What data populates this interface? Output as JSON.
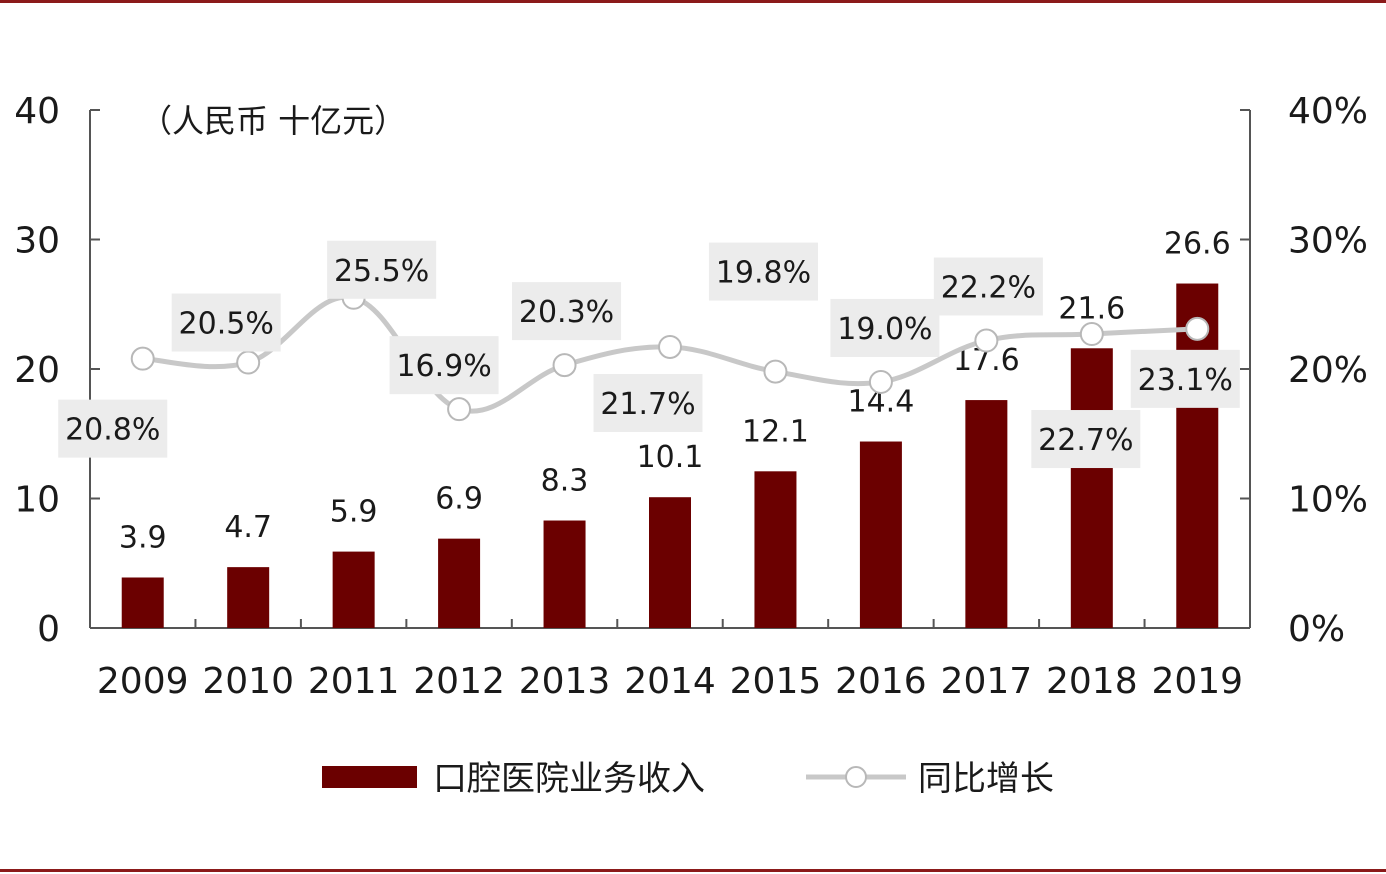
{
  "colors": {
    "bar": "#6b0000",
    "line": "#c8c8c8",
    "marker_fill": "#ffffff",
    "label_bg": "#ececec",
    "frame": "#8b1a1a",
    "axis": "#555555"
  },
  "chart_data": {
    "type": "bar",
    "categories": [
      "2009",
      "2010",
      "2011",
      "2012",
      "2013",
      "2014",
      "2015",
      "2016",
      "2017",
      "2018",
      "2019"
    ],
    "unit_label": "（人民币 十亿元）",
    "y_left": {
      "ylim": [
        0,
        40
      ],
      "ticks": [
        "0",
        "10",
        "20",
        "30",
        "40"
      ]
    },
    "y_right": {
      "ylim": [
        0,
        40
      ],
      "ticks": [
        "0%",
        "10%",
        "20%",
        "30%",
        "40%"
      ]
    },
    "series": [
      {
        "name": "口腔医院业务收入",
        "type": "bar",
        "axis": "left",
        "values": [
          3.9,
          4.7,
          5.9,
          6.9,
          8.3,
          10.1,
          12.1,
          14.4,
          17.6,
          21.6,
          26.6
        ],
        "labels": [
          "3.9",
          "4.7",
          "5.9",
          "6.9",
          "8.3",
          "10.1",
          "12.1",
          "14.4",
          "17.6",
          "21.6",
          "26.6"
        ]
      },
      {
        "name": "同比增长",
        "type": "line",
        "axis": "right",
        "values": [
          20.8,
          20.5,
          25.5,
          16.9,
          20.3,
          21.7,
          19.8,
          19.0,
          22.2,
          22.7,
          23.1
        ],
        "labels": [
          "20.8%",
          "20.5%",
          "25.5%",
          "16.9%",
          "20.3%",
          "21.7%",
          "19.8%",
          "19.0%",
          "22.2%",
          "22.7%",
          "23.1%"
        ]
      }
    ],
    "grid": false,
    "legend": {
      "position": "bottom"
    }
  }
}
